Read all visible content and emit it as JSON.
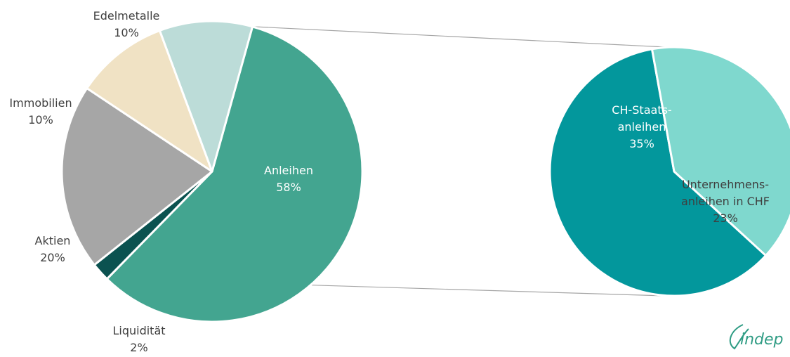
{
  "chart_data": [
    {
      "type": "pie",
      "slices": [
        {
          "label": "Anleihen",
          "value": 58,
          "value_label": "58%",
          "color": "#43a590"
        },
        {
          "label": "Liquidität",
          "value": 2,
          "value_label": "2%",
          "color": "#0b5250"
        },
        {
          "label": "Aktien",
          "value": 20,
          "value_label": "20%",
          "color": "#a6a6a6"
        },
        {
          "label": "Immobilien",
          "value": 10,
          "value_label": "10%",
          "color": "#f0e2c4"
        },
        {
          "label": "Edelmetalle",
          "value": 10,
          "value_label": "10%",
          "color": "#bcdcd8"
        }
      ]
    },
    {
      "type": "pie",
      "breakdown_of": "Anleihen",
      "slices": [
        {
          "label_lines": [
            "CH-Staats-",
            "anleihen"
          ],
          "value": 35,
          "value_label": "35%",
          "color": "#03979c"
        },
        {
          "label_lines": [
            "Unternehmens-",
            "anleihen in CHF"
          ],
          "value": 23,
          "value_label": "23%",
          "color": "#7fd8ce"
        }
      ]
    }
  ],
  "brand_text": "indep"
}
